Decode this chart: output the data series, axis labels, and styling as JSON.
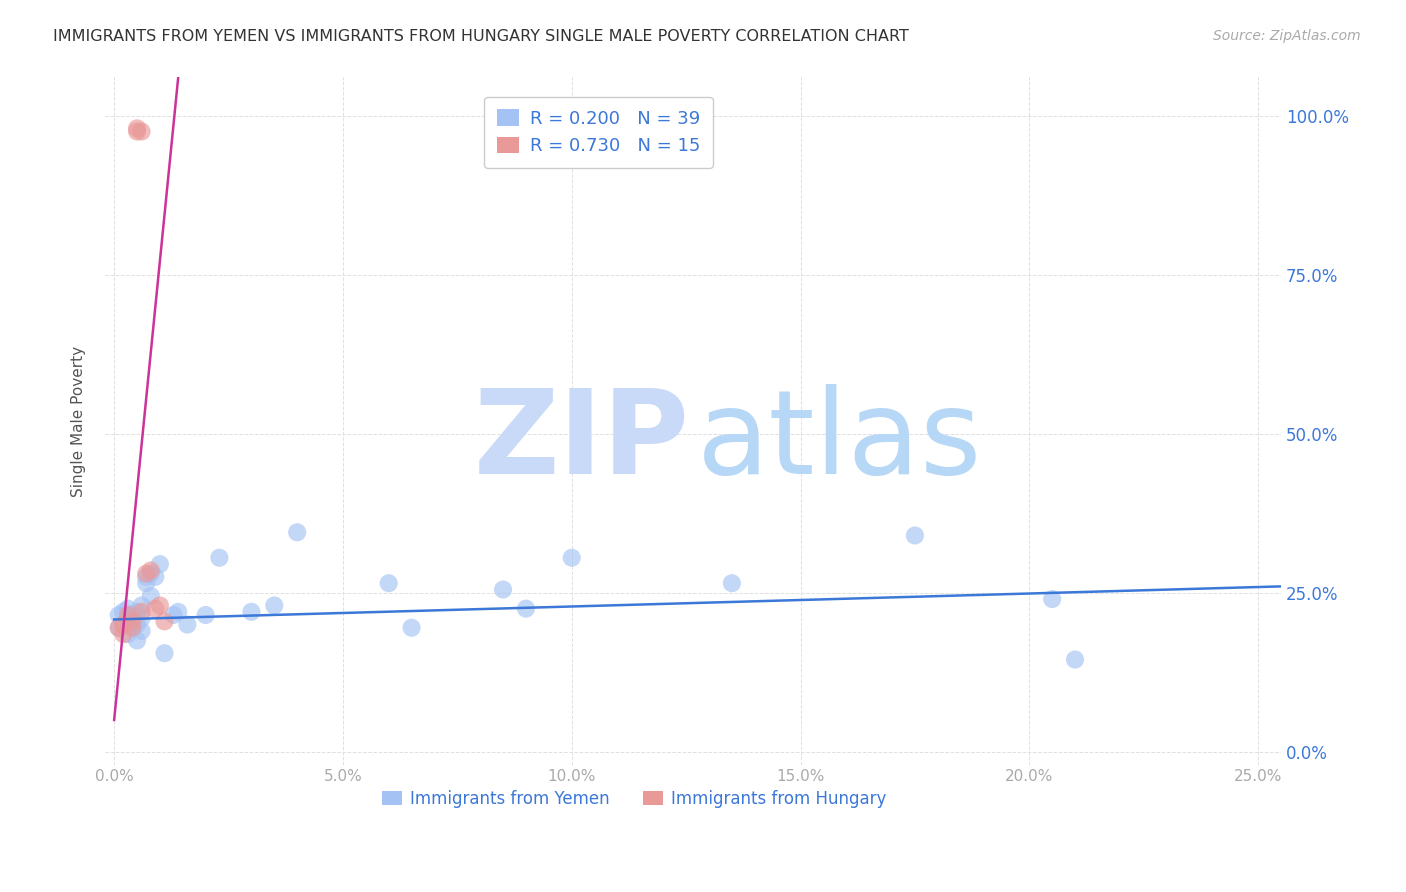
{
  "title": "IMMIGRANTS FROM YEMEN VS IMMIGRANTS FROM HUNGARY SINGLE MALE POVERTY CORRELATION CHART",
  "source": "Source: ZipAtlas.com",
  "ylabel": "Single Male Poverty",
  "ytick_values": [
    0.0,
    0.25,
    0.5,
    0.75,
    1.0
  ],
  "ytick_labels_right": [
    "0.0%",
    "25.0%",
    "50.0%",
    "75.0%",
    "100.0%"
  ],
  "xtick_values": [
    0.0,
    0.05,
    0.1,
    0.15,
    0.2,
    0.25
  ],
  "xtick_labels": [
    "0.0%",
    "5.0%",
    "10.0%",
    "15.0%",
    "20.0%",
    "25.0%"
  ],
  "xlim": [
    -0.002,
    0.255
  ],
  "ylim": [
    -0.02,
    1.06
  ],
  "legend_label_blue": "Immigrants from Yemen",
  "legend_label_pink": "Immigrants from Hungary",
  "color_blue": "#a4c2f4",
  "color_pink": "#ea9999",
  "color_trendline_blue": "#3c78d8",
  "color_trendline_pink": "#cc3399",
  "watermark_zip_color": "#c9daf8",
  "watermark_atlas_color": "#b6d7f5",
  "background_color": "#ffffff",
  "grid_color": "#e0e0e0",
  "yemen_x": [
    0.001,
    0.001,
    0.002,
    0.002,
    0.003,
    0.003,
    0.003,
    0.004,
    0.004,
    0.005,
    0.005,
    0.005,
    0.006,
    0.006,
    0.006,
    0.007,
    0.007,
    0.008,
    0.008,
    0.009,
    0.01,
    0.011,
    0.013,
    0.014,
    0.016,
    0.02,
    0.023,
    0.03,
    0.035,
    0.04,
    0.06,
    0.065,
    0.085,
    0.09,
    0.1,
    0.135,
    0.175,
    0.205,
    0.21
  ],
  "yemen_y": [
    0.195,
    0.215,
    0.2,
    0.22,
    0.185,
    0.21,
    0.225,
    0.195,
    0.215,
    0.175,
    0.2,
    0.22,
    0.19,
    0.21,
    0.23,
    0.265,
    0.275,
    0.245,
    0.28,
    0.275,
    0.295,
    0.155,
    0.215,
    0.22,
    0.2,
    0.215,
    0.305,
    0.22,
    0.23,
    0.345,
    0.265,
    0.195,
    0.255,
    0.225,
    0.305,
    0.265,
    0.34,
    0.24,
    0.145
  ],
  "hungary_x": [
    0.001,
    0.002,
    0.002,
    0.003,
    0.004,
    0.004,
    0.005,
    0.005,
    0.006,
    0.006,
    0.007,
    0.008,
    0.009,
    0.01,
    0.011
  ],
  "hungary_y": [
    0.195,
    0.2,
    0.185,
    0.215,
    0.195,
    0.205,
    0.98,
    0.975,
    0.975,
    0.22,
    0.28,
    0.285,
    0.225,
    0.23,
    0.205
  ],
  "blue_trendline_x": [
    0.0,
    0.255
  ],
  "blue_trendline_y": [
    0.208,
    0.26
  ],
  "pink_trendline_x": [
    0.0,
    0.014
  ],
  "pink_trendline_y": [
    0.05,
    1.06
  ]
}
